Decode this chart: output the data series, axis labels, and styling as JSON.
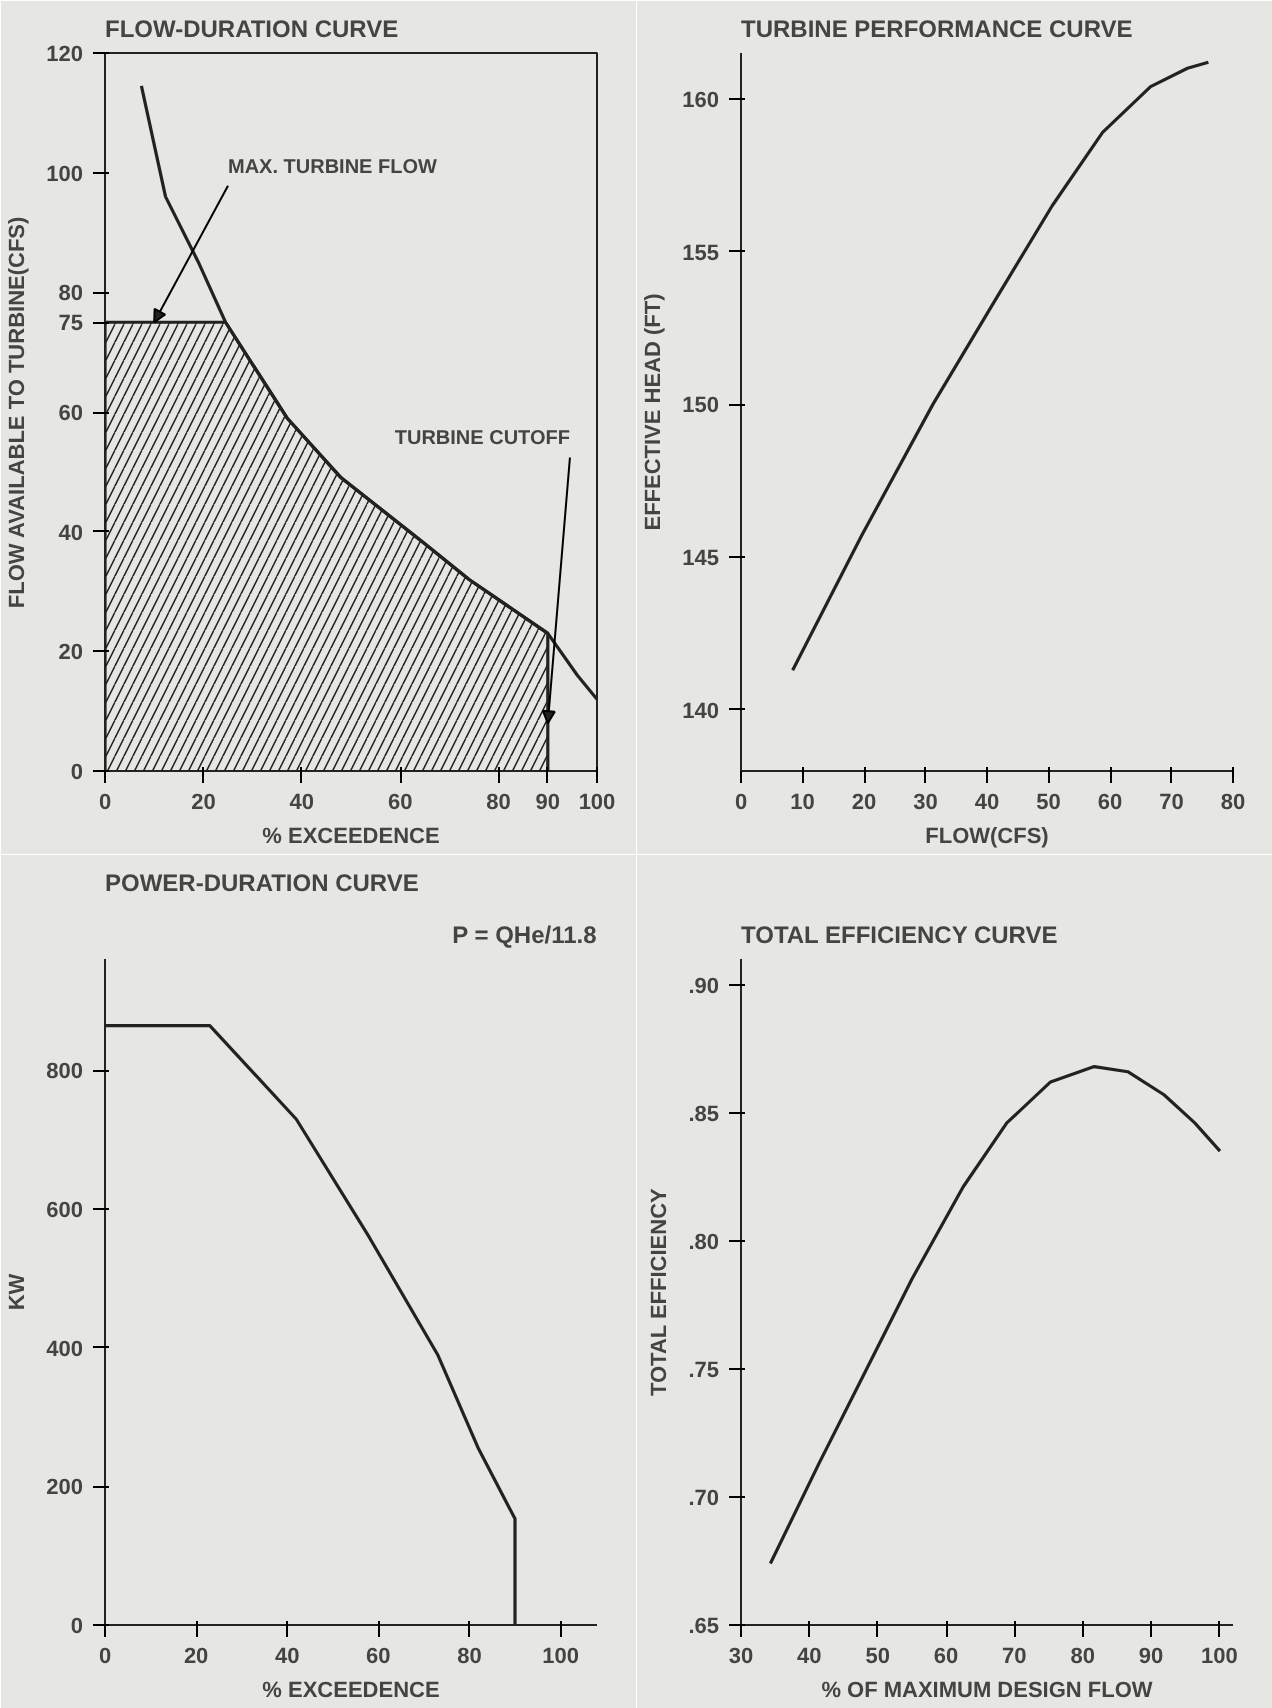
{
  "chart_data": [
    {
      "type": "line",
      "title": "FLOW-DURATION CURVE",
      "xlabel": "% EXCEEDENCE",
      "ylabel": "FLOW AVAILABLE TO TURBINE(CFS)",
      "xlim": [
        0,
        100
      ],
      "xticks": [
        0,
        20,
        40,
        60,
        80,
        90,
        100
      ],
      "ylim": [
        0,
        120
      ],
      "yticks": [
        0,
        20,
        40,
        60,
        75,
        80,
        100,
        120
      ],
      "grid": false,
      "series": [
        {
          "type": "line",
          "color": "#222222",
          "x": [
            7.4,
            12.3,
            19,
            24.5,
            37,
            48,
            65,
            74,
            90,
            96,
            99,
            100
          ],
          "values": [
            114.5,
            96,
            85,
            75,
            59,
            49,
            38,
            32,
            23,
            16,
            13,
            12
          ]
        },
        {
          "type": "area",
          "color": "#222222",
          "x": [
            0,
            24.5,
            37,
            48,
            65,
            74,
            90
          ],
          "values": [
            75,
            75,
            59,
            49,
            38,
            32,
            23
          ]
        }
      ],
      "annotations": [
        {
          "text": "MAX. TURBINE FLOW",
          "x": 10,
          "y": 75
        },
        {
          "text": "TURBINE CUTOFF",
          "x": 90,
          "y": 8
        }
      ]
    },
    {
      "type": "line",
      "title": "TURBINE PERFORMANCE CURVE",
      "xlabel": "FLOW(CFS)",
      "ylabel": "EFFECTIVE HEAD (FT)",
      "xlim": [
        0,
        80
      ],
      "xticks": [
        0,
        10,
        20,
        30,
        40,
        50,
        60,
        70,
        80
      ],
      "ylim": [
        138,
        161.5
      ],
      "yticks": [
        140,
        145,
        150,
        155,
        160
      ],
      "grid": false,
      "series": [
        {
          "type": "line",
          "color": "#222222",
          "x": [
            8.4,
            19.6,
            31.2,
            41.6,
            50.6,
            58.8,
            66.6,
            72.6,
            76
          ],
          "values": [
            141.3,
            145.7,
            150.0,
            153.5,
            156.5,
            158.9,
            160.4,
            161.0,
            161.2
          ]
        }
      ]
    },
    {
      "type": "line",
      "title": "POWER-DURATION CURVE",
      "xlabel": "% EXCEEDENCE",
      "ylabel": "KW",
      "xlim": [
        0,
        108
      ],
      "xticks": [
        0,
        20,
        40,
        60,
        80,
        100
      ],
      "ylim": [
        0,
        960
      ],
      "yticks": [
        0,
        200,
        400,
        600,
        800
      ],
      "grid": false,
      "series": [
        {
          "type": "line",
          "color": "#222222",
          "x": [
            0,
            23,
            42,
            58,
            73,
            82,
            90,
            90
          ],
          "values": [
            864,
            864,
            729,
            559,
            390,
            254,
            153,
            0
          ]
        }
      ],
      "annotations": [
        "P = QHe/11.8"
      ]
    },
    {
      "type": "line",
      "title": "TOTAL EFFICIENCY CURVE",
      "xlabel": "% OF MAXIMUM DESIGN FLOW",
      "ylabel": "TOTAL EFFICIENCY",
      "xlim": [
        30,
        102
      ],
      "xticks": [
        30,
        40,
        50,
        60,
        70,
        80,
        90,
        100
      ],
      "ylim": [
        0.65,
        0.91
      ],
      "yticks": [
        {
          "value": 0.65,
          "label": ".65"
        },
        {
          "value": 0.7,
          "label": ".70"
        },
        {
          "value": 0.75,
          "label": ".75"
        },
        {
          "value": 0.8,
          "label": ".80"
        },
        {
          "value": 0.85,
          "label": ".85"
        },
        {
          "value": 0.9,
          "label": ".90"
        }
      ],
      "grid": false,
      "series": [
        {
          "type": "line",
          "color": "#222222",
          "x": [
            34.3,
            41.4,
            48.2,
            55,
            62.5,
            68.9,
            75.3,
            81.7,
            86.6,
            91.9,
            96.4,
            100.1
          ],
          "values": [
            0.674,
            0.713,
            0.749,
            0.785,
            0.821,
            0.846,
            0.862,
            0.868,
            0.866,
            0.857,
            0.846,
            0.835
          ]
        }
      ]
    }
  ]
}
